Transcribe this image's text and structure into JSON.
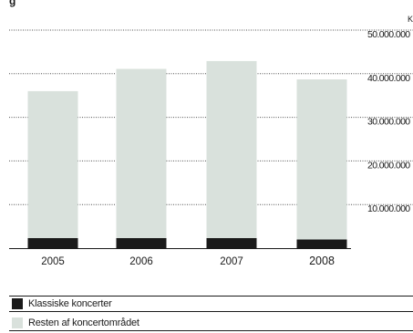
{
  "header": {
    "title_fragment": "g",
    "unit_fragment": "K"
  },
  "chart_data": {
    "type": "bar",
    "stacked": true,
    "categories": [
      "2005",
      "2006",
      "2007",
      "2008"
    ],
    "series": [
      {
        "name": "Klassiske koncerter",
        "color": "#1a1a1a",
        "values": [
          2300000,
          2300000,
          2300000,
          2000000
        ]
      },
      {
        "name": "Resten af koncertområdet",
        "color": "#d9e1dc",
        "values": [
          33700000,
          38800000,
          40600000,
          36700000
        ]
      }
    ],
    "y_ticks": [
      {
        "value": 10000000,
        "label": "10.000.000"
      },
      {
        "value": 20000000,
        "label": "20.000.000"
      },
      {
        "value": 30000000,
        "label": "30.000.000"
      },
      {
        "value": 40000000,
        "label": "40.000.000"
      },
      {
        "value": 50000000,
        "label": "50.000.000"
      }
    ],
    "ylim": [
      0,
      50000000
    ],
    "grid": true,
    "legend_position": "bottom-left"
  },
  "legend": {
    "items": [
      {
        "label": "Klassiske koncerter",
        "color": "#1a1a1a"
      },
      {
        "label": "Resten af koncertområdet",
        "color": "#d9e1dc"
      }
    ]
  }
}
